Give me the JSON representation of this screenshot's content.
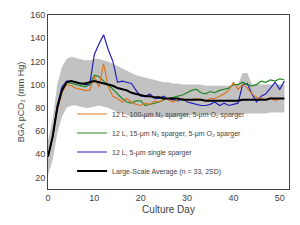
{
  "chart_data": {
    "type": "line",
    "xlabel": "Culture Day",
    "ylabel": "BGA pCO₂ (mm Hg)",
    "x": [
      0,
      1,
      2,
      3,
      4,
      5,
      6,
      7,
      8,
      9,
      10,
      11,
      12,
      13,
      14,
      15,
      16,
      17,
      18,
      19,
      20,
      21,
      22,
      23,
      24,
      25,
      26,
      27,
      28,
      29,
      30,
      31,
      32,
      33,
      34,
      35,
      36,
      37,
      38,
      39,
      40,
      41,
      42,
      43,
      44,
      45,
      46,
      47,
      48,
      49,
      50,
      51
    ],
    "xlim": [
      0,
      52
    ],
    "xticks": [
      0,
      10,
      20,
      30,
      40,
      50
    ],
    "ylim": [
      10,
      160
    ],
    "yticks": [
      20,
      40,
      60,
      80,
      100,
      120,
      140,
      160
    ],
    "grid": false,
    "legend": "lower left",
    "series": [
      {
        "name": "Large-Scale Average (n = 33, 2SD)",
        "color": "#000000",
        "values": [
          38,
          55,
          80,
          95,
          102,
          103,
          102,
          101,
          101,
          102,
          103,
          102,
          101,
          100,
          99,
          97,
          96,
          95,
          93,
          92,
          91,
          90,
          90,
          89,
          89,
          88,
          88,
          88,
          88,
          87,
          87,
          87,
          87,
          87,
          86,
          86,
          86,
          86,
          86,
          86,
          86,
          86,
          87,
          87,
          87,
          87,
          87,
          87,
          88,
          88,
          88,
          88
        ],
        "upper": [
          52,
          70,
          100,
          115,
          122,
          124,
          123,
          122,
          121,
          121,
          122,
          122,
          121,
          120,
          118,
          116,
          114,
          112,
          110,
          108,
          107,
          106,
          105,
          104,
          103,
          102,
          102,
          101,
          101,
          100,
          100,
          100,
          100,
          100,
          99,
          99,
          99,
          99,
          99,
          99,
          100,
          100,
          110,
          110,
          100,
          100,
          100,
          100,
          100,
          100,
          100,
          100
        ],
        "lower": [
          22,
          35,
          58,
          72,
          80,
          82,
          82,
          81,
          80,
          80,
          81,
          82,
          81,
          80,
          78,
          76,
          75,
          74,
          72,
          72,
          72,
          72,
          72,
          72,
          72,
          72,
          72,
          72,
          73,
          73,
          73,
          74,
          74,
          74,
          74,
          74,
          74,
          74,
          74,
          74,
          74,
          74,
          75,
          75,
          75,
          75,
          75,
          75,
          76,
          76,
          76,
          76
        ]
      },
      {
        "name": "12 L, 5-μm single sparger",
        "color": "#2222bb",
        "values": [
          38,
          55,
          82,
          98,
          103,
          103,
          102,
          101,
          100,
          100,
          126,
          135,
          143,
          130,
          120,
          102,
          103,
          102,
          101,
          95,
          90,
          90,
          92,
          88,
          88,
          90,
          87,
          87,
          86,
          88,
          85,
          84,
          83,
          82,
          82,
          83,
          85,
          82,
          84,
          82,
          83,
          84,
          100,
          101,
          92,
          85,
          90,
          92,
          97,
          102,
          96,
          103
        ]
      },
      {
        "name": "12 L, 15-μm N₂ sparger, 5-μm O₂ sparger",
        "color": "#228822",
        "values": [
          38,
          55,
          80,
          95,
          102,
          101,
          100,
          99,
          98,
          100,
          108,
          107,
          103,
          100,
          96,
          92,
          88,
          85,
          84,
          86,
          86,
          82,
          83,
          84,
          85,
          87,
          88,
          89,
          90,
          91,
          93,
          95,
          96,
          93,
          92,
          94,
          93,
          95,
          96,
          97,
          100,
          100,
          102,
          100,
          99,
          100,
          103,
          102,
          104,
          103,
          105,
          104
        ]
      },
      {
        "name": "12 L, 100-μm N₂ sparger, 5-μm O₂ sparger",
        "color": "#dd7722",
        "values": [
          38,
          55,
          78,
          93,
          100,
          99,
          97,
          96,
          95,
          95,
          107,
          98,
          118,
          98,
          90,
          88,
          85,
          88,
          85,
          83,
          82,
          84,
          83,
          86,
          85,
          88,
          87,
          85,
          87,
          88,
          86,
          87,
          88,
          87,
          86,
          88,
          88,
          90,
          92,
          95,
          102,
          96,
          100,
          97,
          92,
          89,
          88,
          87,
          89,
          86,
          88,
          88
        ]
      }
    ]
  }
}
